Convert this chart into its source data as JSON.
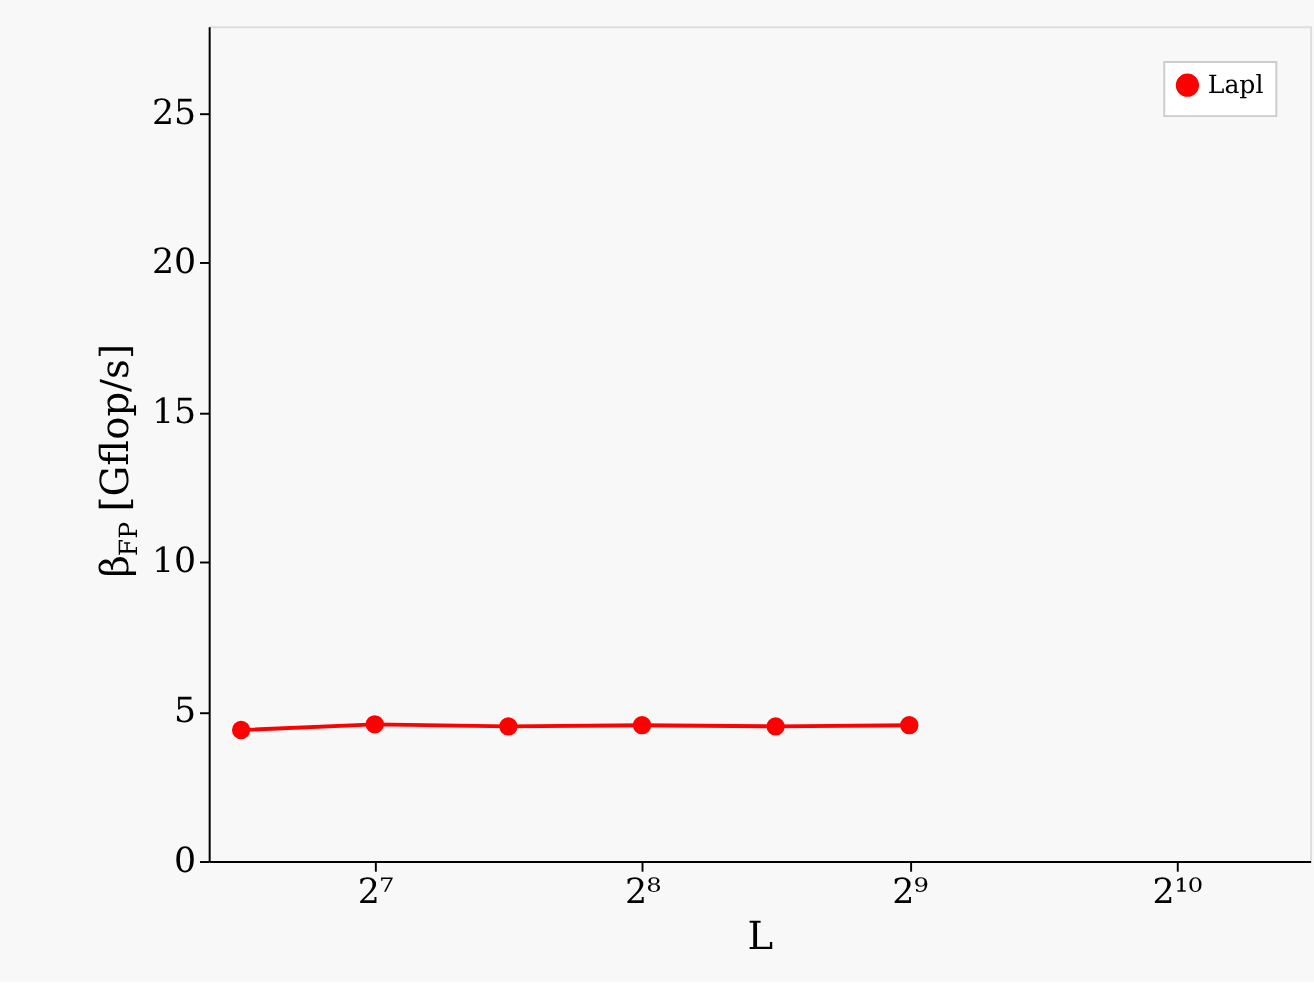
{
  "chart_data": {
    "type": "line",
    "xlabel": "L",
    "ylabel": "β$_{FP}$ [Gflop/s]",
    "log": "x",
    "series": [
      {
        "name": "Lapl",
        "color": "#ff0000",
        "x": [
          90.5,
          128,
          181,
          256,
          362,
          512
        ],
        "values": [
          4.38,
          4.57,
          4.5,
          4.54,
          4.5,
          4.54
        ]
      }
    ],
    "xlim": [
      83.2,
      1448
    ],
    "xticks": [
      {
        "value": 128,
        "label": "2⁷"
      },
      {
        "value": 256,
        "label": "2⁸"
      },
      {
        "value": 512,
        "label": "2⁹"
      },
      {
        "value": 1024,
        "label": "2¹⁰"
      }
    ],
    "ylim": [
      0,
      27.9
    ],
    "yticks": [
      0,
      5,
      10,
      15,
      20,
      25
    ],
    "marker": "circle",
    "line_style": "solid",
    "grid": false,
    "legend": "top right"
  }
}
